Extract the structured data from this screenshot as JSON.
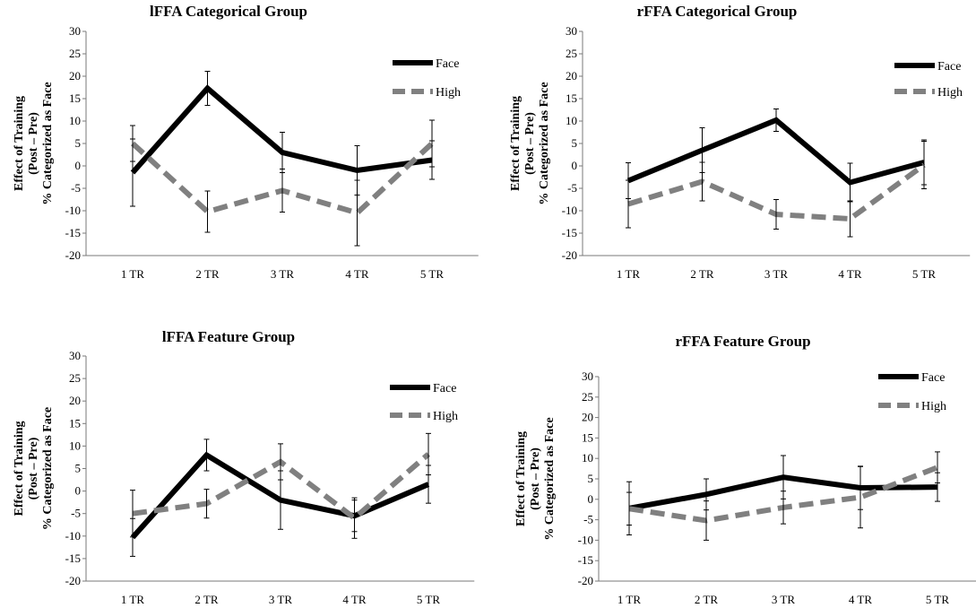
{
  "chart_data": [
    {
      "type": "line",
      "title": "lFFA Categorical Group",
      "ylabel": [
        "Effect of Training",
        "(Post – Pre)",
        "% Categorized as Face"
      ],
      "categories": [
        "1 TR",
        "2 TR",
        "3 TR",
        "4 TR",
        "5 TR"
      ],
      "ylim": [
        -20,
        30
      ],
      "yticks": [
        30,
        25,
        20,
        15,
        10,
        5,
        0,
        -5,
        -10,
        -15,
        -20
      ],
      "legend_position": "top-right",
      "grid": false,
      "series": [
        {
          "name": "Face",
          "color": "#000000",
          "dashed": false,
          "values": [
            -1.5,
            17.3,
            3,
            -1,
            1.3
          ],
          "err": [
            7.5,
            3.8,
            4.5,
            5.5,
            4.3
          ]
        },
        {
          "name": "High",
          "color": "#808080",
          "dashed": true,
          "values": [
            5,
            -10.2,
            -5.5,
            -10.5,
            5
          ],
          "err": [
            4,
            4.6,
            4.8,
            7.3,
            5.2
          ]
        }
      ]
    },
    {
      "type": "line",
      "title": "rFFA Categorical Group",
      "ylabel": [
        "Effect of Training",
        "(Post – Pre)",
        "% Categorized as Face"
      ],
      "categories": [
        "1 TR",
        "2 TR",
        "3 TR",
        "4 TR",
        "5 TR"
      ],
      "ylim": [
        -20,
        30
      ],
      "yticks": [
        30,
        25,
        20,
        15,
        10,
        5,
        0,
        -5,
        -10,
        -15,
        -20
      ],
      "legend_position": "top-right",
      "grid": false,
      "series": [
        {
          "name": "Face",
          "color": "#000000",
          "dashed": false,
          "values": [
            -3.3,
            3.5,
            10.2,
            -3.7,
            0.8
          ],
          "err": [
            4,
            5,
            2.5,
            4.3,
            5
          ]
        },
        {
          "name": "High",
          "color": "#808080",
          "dashed": true,
          "values": [
            -8.5,
            -3.5,
            -10.8,
            -11.8,
            0.2
          ],
          "err": [
            5.3,
            4.3,
            3.3,
            4,
            5.3
          ]
        }
      ]
    },
    {
      "type": "line",
      "title": "lFFA Feature Group",
      "ylabel": [
        "Effect of Training",
        "(Post – Pre)",
        "% Categorized as Face"
      ],
      "categories": [
        "1 TR",
        "2 TR",
        "3 TR",
        "4 TR",
        "5 TR"
      ],
      "ylim": [
        -20,
        30
      ],
      "yticks": [
        30,
        25,
        20,
        15,
        10,
        5,
        0,
        -5,
        -10,
        -15,
        -20
      ],
      "legend_position": "top-right",
      "grid": false,
      "series": [
        {
          "name": "Face",
          "color": "#000000",
          "dashed": false,
          "values": [
            -10.3,
            8,
            -2,
            -5.5,
            1.5
          ],
          "err": [
            4.2,
            3.5,
            6.5,
            3.5,
            4.2
          ]
        },
        {
          "name": "High",
          "color": "#808080",
          "dashed": true,
          "values": [
            -5,
            -2.8,
            6.5,
            -6,
            8.2
          ],
          "err": [
            5.2,
            3.2,
            4,
            4.5,
            4.6
          ]
        }
      ]
    },
    {
      "type": "line",
      "title": "rFFA Feature Group",
      "ylabel": [
        "Effect of Training",
        "(Post – Pre)",
        "% Categorized as Face"
      ],
      "categories": [
        "1 TR",
        "2 TR",
        "3 TR",
        "4 TR",
        "5 TR"
      ],
      "ylim": [
        -20,
        30
      ],
      "yticks": [
        30,
        25,
        20,
        15,
        10,
        5,
        0,
        -5,
        -10,
        -15,
        -20
      ],
      "legend_position": "top-right",
      "grid": false,
      "series": [
        {
          "name": "Face",
          "color": "#000000",
          "dashed": false,
          "values": [
            -2.2,
            1.2,
            5.4,
            2.8,
            3
          ],
          "err": [
            6.5,
            3.8,
            5.3,
            5.3,
            3.5
          ]
        },
        {
          "name": "High",
          "color": "#808080",
          "dashed": true,
          "values": [
            -2.3,
            -5.2,
            -2,
            0.5,
            7.8
          ],
          "err": [
            4,
            4.8,
            4,
            7.5,
            3.8
          ]
        }
      ]
    }
  ]
}
